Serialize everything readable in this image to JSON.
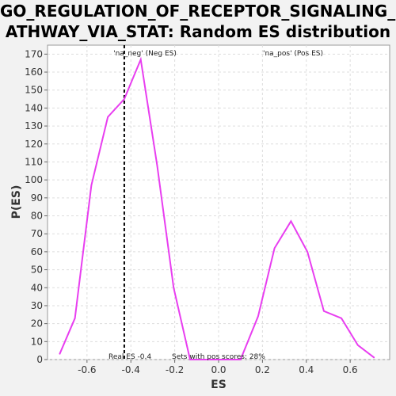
{
  "chart_data": {
    "type": "line",
    "title_line1": "GO_REGULATION_OF_RECEPTOR_SIGNALING_P",
    "title_line2": "ATHWAY_VIA_STAT: Random ES distribution",
    "xlabel": "ES",
    "ylabel": "P(ES)",
    "xlim": [
      -0.78,
      0.78
    ],
    "ylim": [
      0,
      175
    ],
    "x_ticks": [
      -0.6,
      -0.4,
      -0.2,
      0.0,
      0.2,
      0.4,
      0.6
    ],
    "x_tick_labels": [
      "-0.6",
      "-0.4",
      "-0.2",
      "0.0",
      "0.2",
      "0.4",
      "0.6"
    ],
    "y_ticks": [
      0,
      10,
      20,
      30,
      40,
      50,
      60,
      70,
      80,
      90,
      100,
      110,
      120,
      130,
      140,
      150,
      160,
      170
    ],
    "grid": true,
    "series": [
      {
        "color": "#e83ef0",
        "x": [
          -0.725,
          -0.655,
          -0.58,
          -0.505,
          -0.43,
          -0.355,
          -0.28,
          -0.205,
          -0.13,
          -0.055,
          0.02,
          0.1,
          0.18,
          0.255,
          0.33,
          0.405,
          0.48,
          0.56,
          0.635,
          0.71
        ],
        "y": [
          3,
          23,
          97,
          135,
          145,
          167,
          108,
          40,
          0,
          0,
          0,
          0,
          24,
          62,
          77,
          60,
          27,
          23,
          8,
          1
        ]
      }
    ],
    "real_es": -0.43,
    "annotations": {
      "neg_label": "'na_neg' (Neg ES)",
      "pos_label": "'na_pos' (Pos ES)",
      "real_es_label": "Real ES -0.4",
      "pos_scores_label": "Sets with pos scores: 28%"
    },
    "colors": {
      "neg": "#2222cc",
      "pos": "#dd2222",
      "line": "#e83ef0"
    }
  }
}
